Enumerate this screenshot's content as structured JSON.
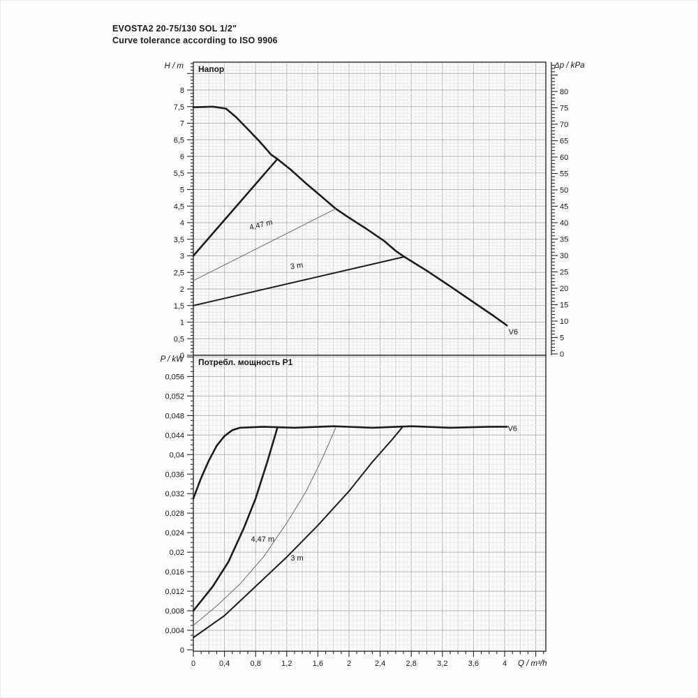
{
  "figure": {
    "title": "EVOSTA2 20-75/130 SOL 1/2\"",
    "subtitle": "Curve tolerance according to ISO 9906"
  },
  "chart_data": [
    {
      "type": "line",
      "id": "head",
      "title": "Напор",
      "ylabel": "H / m",
      "ylabel_right": "Δp / kPa",
      "xlabel": "",
      "x_range": [
        0,
        4.53
      ],
      "y_range": [
        0,
        8.84
      ],
      "y2_range": [
        0,
        89
      ],
      "grid": true,
      "y_ticks": {
        "values": [
          0,
          0.5,
          1,
          1.5,
          2,
          2.5,
          3,
          3.5,
          4,
          4.5,
          5,
          5.5,
          6,
          6.5,
          7,
          7.5,
          8
        ],
        "labels": [
          "0",
          "0,5",
          "1",
          "1,5",
          "2",
          "2,5",
          "3",
          "3,5",
          "4",
          "4,5",
          "5",
          "5,5",
          "6",
          "6,5",
          "7",
          "7,5",
          "8"
        ]
      },
      "y2_ticks": {
        "values": [
          0,
          5,
          10,
          15,
          20,
          25,
          30,
          35,
          40,
          45,
          50,
          55,
          60,
          65,
          70,
          75,
          80
        ],
        "labels": [
          "0",
          "5",
          "10",
          "15",
          "20",
          "25",
          "30",
          "35",
          "40",
          "45",
          "50",
          "55",
          "60",
          "65",
          "70",
          "75",
          "80"
        ]
      },
      "series": [
        {
          "name": "max-speed-curve-V6",
          "style": "thick",
          "points": [
            [
              0,
              7.48
            ],
            [
              0.25,
              7.5
            ],
            [
              0.42,
              7.44
            ],
            [
              0.55,
              7.18
            ],
            [
              0.7,
              6.82
            ],
            [
              0.85,
              6.45
            ],
            [
              1.0,
              6.05
            ],
            [
              1.08,
              5.92
            ],
            [
              1.25,
              5.6
            ],
            [
              1.45,
              5.18
            ],
            [
              1.65,
              4.78
            ],
            [
              1.83,
              4.42
            ],
            [
              2.0,
              4.15
            ],
            [
              2.2,
              3.85
            ],
            [
              2.45,
              3.45
            ],
            [
              2.6,
              3.15
            ],
            [
              2.71,
              2.97
            ],
            [
              3.0,
              2.55
            ],
            [
              3.3,
              2.08
            ],
            [
              3.6,
              1.6
            ],
            [
              3.85,
              1.2
            ],
            [
              4.03,
              0.9
            ]
          ]
        },
        {
          "name": "setting-curve-upper",
          "style": "thick",
          "points": [
            [
              0,
              3.0
            ],
            [
              1.08,
              5.92
            ]
          ]
        },
        {
          "name": "setting-curve-4-47m",
          "style": "thin",
          "points": [
            [
              0,
              2.25
            ],
            [
              1.83,
              4.42
            ]
          ]
        },
        {
          "name": "setting-curve-3m",
          "style": "medium",
          "points": [
            [
              0,
              1.5
            ],
            [
              2.71,
              2.97
            ]
          ]
        }
      ],
      "annotations": [
        {
          "text": "4,47 m",
          "x": 0.73,
          "y": 3.78,
          "rotate": -14
        },
        {
          "text": "3 m",
          "x": 1.25,
          "y": 2.6,
          "rotate": -8
        },
        {
          "text": "V6",
          "x": 4.05,
          "y": 0.63,
          "rotate": 0
        }
      ]
    },
    {
      "type": "line",
      "id": "power",
      "title": "Потребл. мощность P1",
      "ylabel": "P / kW",
      "xlabel": "Q / m³/h",
      "x_range": [
        0,
        4.53
      ],
      "y_range": [
        0,
        0.0601
      ],
      "grid": true,
      "x_ticks": {
        "values": [
          0,
          0.4,
          0.8,
          1.2,
          1.6,
          2,
          2.4,
          2.8,
          3.2,
          3.6,
          4
        ],
        "labels": [
          "0",
          "0,4",
          "0,8",
          "1,2",
          "1,6",
          "2",
          "2,4",
          "2,8",
          "3,2",
          "3,6",
          "4"
        ]
      },
      "y_ticks": {
        "values": [
          0,
          0.004,
          0.008,
          0.012,
          0.016,
          0.02,
          0.024,
          0.028,
          0.032,
          0.036,
          0.04,
          0.044,
          0.048,
          0.052,
          0.056
        ],
        "labels": [
          "0",
          "0,004",
          "0,008",
          "0,012",
          "0,016",
          "0,02",
          "0,024",
          "0,028",
          "0,032",
          "0,036",
          "0,04",
          "0,044",
          "0,048",
          "0,052",
          "0,056"
        ]
      },
      "series": [
        {
          "name": "power-curve-V6",
          "style": "thick",
          "points": [
            [
              0,
              0.031
            ],
            [
              0.1,
              0.0352
            ],
            [
              0.2,
              0.0388
            ],
            [
              0.3,
              0.0418
            ],
            [
              0.4,
              0.0438
            ],
            [
              0.5,
              0.045
            ],
            [
              0.6,
              0.0455
            ],
            [
              0.9,
              0.0457
            ],
            [
              1.3,
              0.0455
            ],
            [
              1.8,
              0.0458
            ],
            [
              2.3,
              0.0455
            ],
            [
              2.8,
              0.0458
            ],
            [
              3.3,
              0.0455
            ],
            [
              3.8,
              0.0457
            ],
            [
              4.03,
              0.0457
            ]
          ]
        },
        {
          "name": "power-curve-upper-setting",
          "style": "thick",
          "points": [
            [
              0,
              0.008
            ],
            [
              0.25,
              0.013
            ],
            [
              0.45,
              0.018
            ],
            [
              0.65,
              0.025
            ],
            [
              0.8,
              0.031
            ],
            [
              0.95,
              0.0385
            ],
            [
              1.08,
              0.0455
            ]
          ]
        },
        {
          "name": "power-curve-4-47m",
          "style": "thin",
          "points": [
            [
              0,
              0.005
            ],
            [
              0.3,
              0.009
            ],
            [
              0.6,
              0.0135
            ],
            [
              0.9,
              0.019
            ],
            [
              1.2,
              0.026
            ],
            [
              1.45,
              0.0325
            ],
            [
              1.65,
              0.039
            ],
            [
              1.83,
              0.0455
            ]
          ]
        },
        {
          "name": "power-curve-3m",
          "style": "medium",
          "points": [
            [
              0,
              0.0025
            ],
            [
              0.4,
              0.007
            ],
            [
              0.8,
              0.013
            ],
            [
              1.2,
              0.019
            ],
            [
              1.6,
              0.0255
            ],
            [
              2.0,
              0.0325
            ],
            [
              2.3,
              0.0385
            ],
            [
              2.55,
              0.043
            ],
            [
              2.68,
              0.0455
            ]
          ]
        }
      ],
      "annotations": [
        {
          "text": "4,47 m",
          "x": 0.74,
          "y": 0.0222,
          "rotate": 0
        },
        {
          "text": "3 m",
          "x": 1.25,
          "y": 0.0183,
          "rotate": 0
        },
        {
          "text": "V6",
          "x": 4.04,
          "y": 0.0448,
          "rotate": 0
        }
      ]
    }
  ]
}
